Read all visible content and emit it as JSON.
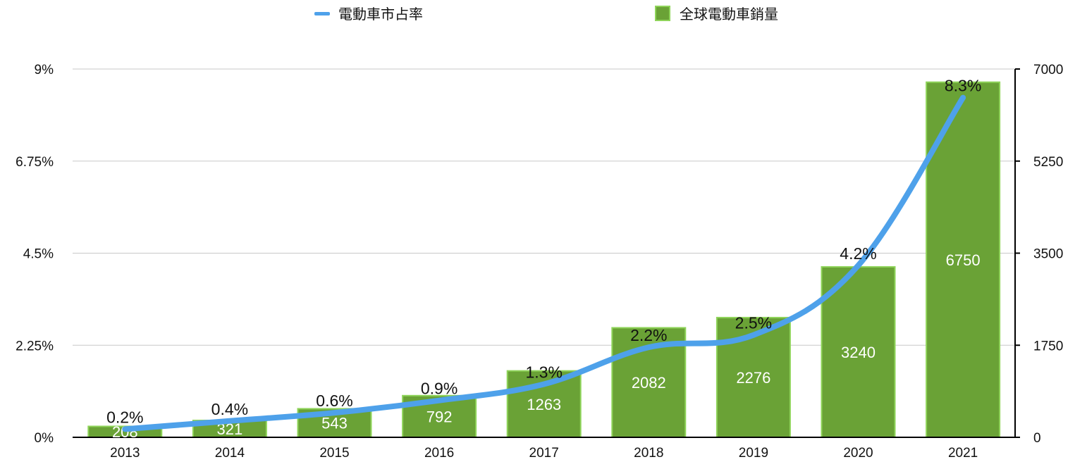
{
  "chart_data": {
    "type": "bar",
    "categories": [
      "2013",
      "2014",
      "2015",
      "2016",
      "2017",
      "2018",
      "2019",
      "2020",
      "2021"
    ],
    "series": [
      {
        "name": "全球電動車銷量",
        "type": "bar",
        "axis": "right",
        "color": "#6aa236",
        "values": [
          208,
          321,
          543,
          792,
          1263,
          2082,
          2276,
          3240,
          6750
        ],
        "labels": [
          "208",
          "321",
          "543",
          "792",
          "1263",
          "2082",
          "2276",
          "3240",
          "6750"
        ]
      },
      {
        "name": "電動車市占率",
        "type": "line",
        "axis": "left",
        "color": "#4ea1ea",
        "values": [
          0.2,
          0.4,
          0.6,
          0.9,
          1.3,
          2.2,
          2.5,
          4.2,
          8.3
        ],
        "labels": [
          "0.2%",
          "0.4%",
          "0.6%",
          "0.9%",
          "1.3%",
          "2.2%",
          "2.5%",
          "4.2%",
          "8.3%"
        ]
      }
    ],
    "y_left": {
      "range": [
        0,
        9
      ],
      "ticks": [
        0,
        2.25,
        4.5,
        6.75,
        9
      ],
      "tick_labels": [
        "0%",
        "2.25%",
        "4.5%",
        "6.75%",
        "9%"
      ]
    },
    "y_right": {
      "range": [
        0,
        7000
      ],
      "ticks": [
        0,
        1750,
        3500,
        5250,
        7000
      ],
      "tick_labels": [
        "0",
        "1750",
        "3500",
        "5250",
        "7000"
      ]
    },
    "grid": true,
    "legend": "top-center",
    "bar_border_color": "#8fd45a",
    "grid_color": "#c8c8c8",
    "axis_color": "#000000"
  }
}
